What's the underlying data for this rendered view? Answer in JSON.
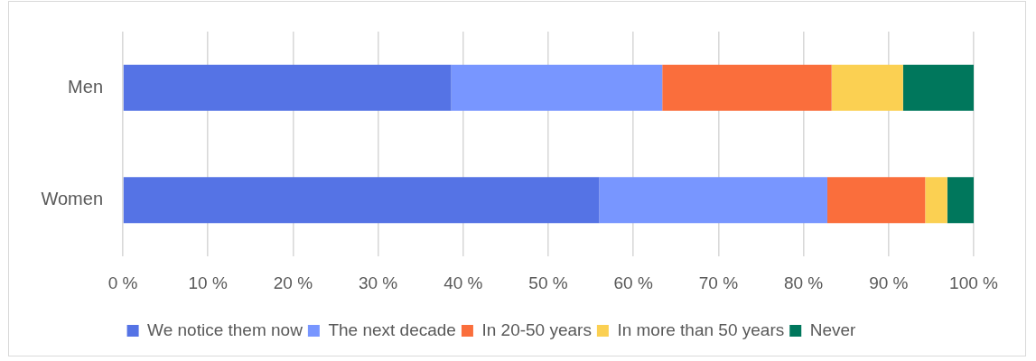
{
  "chart_data": {
    "type": "bar",
    "orientation": "horizontal",
    "stacked": true,
    "categories": [
      "Men",
      "Women"
    ],
    "series": [
      {
        "name": "We notice them now",
        "color": "#5573e5",
        "values": [
          38.6,
          56.0
        ]
      },
      {
        "name": "The next decade",
        "color": "#7896ff",
        "values": [
          24.8,
          26.8
        ]
      },
      {
        "name": "In 20-50 years",
        "color": "#fa6e3c",
        "values": [
          19.9,
          11.5
        ]
      },
      {
        "name": "In more than 50 years",
        "color": "#fbd052",
        "values": [
          8.4,
          2.6
        ]
      },
      {
        "name": "Never",
        "color": "#00775c",
        "values": [
          8.3,
          3.1
        ]
      }
    ],
    "xlim": [
      0,
      100
    ],
    "xticks": [
      {
        "value": 0,
        "label": "0 %"
      },
      {
        "value": 10,
        "label": "10 %"
      },
      {
        "value": 20,
        "label": "20 %"
      },
      {
        "value": 30,
        "label": "30 %"
      },
      {
        "value": 40,
        "label": "40 %"
      },
      {
        "value": 50,
        "label": "50 %"
      },
      {
        "value": 60,
        "label": "60 %"
      },
      {
        "value": 70,
        "label": "70 %"
      },
      {
        "value": 80,
        "label": "80 %"
      },
      {
        "value": 90,
        "label": "90 %"
      },
      {
        "value": 100,
        "label": "100 %"
      }
    ],
    "grid": "x",
    "legend": "bottom"
  }
}
